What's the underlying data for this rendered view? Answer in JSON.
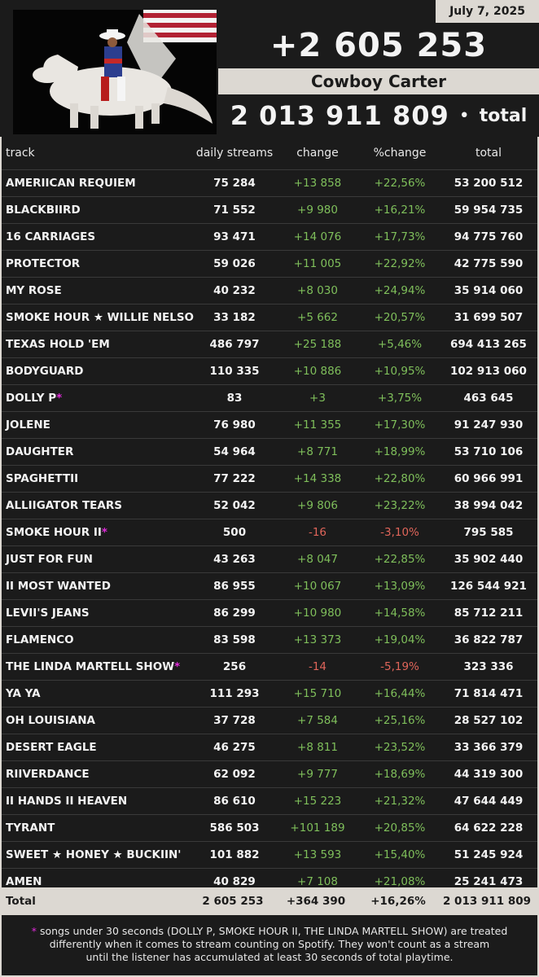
{
  "header": {
    "date": "July 7, 2025",
    "daily_total": "+2 605 253",
    "album": "Cowboy Carter",
    "total_value": "2 013 911 809",
    "total_dot": "•",
    "total_label": "total"
  },
  "columns": {
    "track": "track",
    "daily": "daily streams",
    "change": "change",
    "pct": "%change",
    "total": "total"
  },
  "rows": [
    {
      "track": "AMERIICAN REQUIEM",
      "daily": "75 284",
      "change": "+13 858",
      "pct": "+22,56%",
      "total": "53 200 512",
      "dir": "pos",
      "star": ""
    },
    {
      "track": "BLACKBIIRD",
      "daily": "71 552",
      "change": "+9 980",
      "pct": "+16,21%",
      "total": "59 954 735",
      "dir": "pos",
      "star": ""
    },
    {
      "track": "16 CARRIAGES",
      "daily": "93 471",
      "change": "+14 076",
      "pct": "+17,73%",
      "total": "94 775 760",
      "dir": "pos",
      "star": ""
    },
    {
      "track": "PROTECTOR",
      "daily": "59 026",
      "change": "+11 005",
      "pct": "+22,92%",
      "total": "42 775 590",
      "dir": "pos",
      "star": ""
    },
    {
      "track": "MY ROSE",
      "daily": "40 232",
      "change": "+8 030",
      "pct": "+24,94%",
      "total": "35 914 060",
      "dir": "pos",
      "star": ""
    },
    {
      "track": "SMOKE HOUR ★ WILLIE NELSON",
      "daily": "33 182",
      "change": "+5 662",
      "pct": "+20,57%",
      "total": "31 699 507",
      "dir": "pos",
      "star": ""
    },
    {
      "track": "TEXAS HOLD 'EM",
      "daily": "486 797",
      "change": "+25 188",
      "pct": "+5,46%",
      "total": "694 413 265",
      "dir": "pos",
      "star": ""
    },
    {
      "track": "BODYGUARD",
      "daily": "110 335",
      "change": "+10 886",
      "pct": "+10,95%",
      "total": "102 913 060",
      "dir": "pos",
      "star": ""
    },
    {
      "track": "DOLLY P",
      "daily": "83",
      "change": "+3",
      "pct": "+3,75%",
      "total": "463 645",
      "dir": "pos",
      "star": "*"
    },
    {
      "track": "JOLENE",
      "daily": "76 980",
      "change": "+11 355",
      "pct": "+17,30%",
      "total": "91 247 930",
      "dir": "pos",
      "star": ""
    },
    {
      "track": "DAUGHTER",
      "daily": "54 964",
      "change": "+8 771",
      "pct": "+18,99%",
      "total": "53 710 106",
      "dir": "pos",
      "star": ""
    },
    {
      "track": "SPAGHETTII",
      "daily": "77 222",
      "change": "+14 338",
      "pct": "+22,80%",
      "total": "60 966 991",
      "dir": "pos",
      "star": ""
    },
    {
      "track": "ALLIIGATOR TEARS",
      "daily": "52 042",
      "change": "+9 806",
      "pct": "+23,22%",
      "total": "38 994 042",
      "dir": "pos",
      "star": ""
    },
    {
      "track": "SMOKE HOUR II",
      "daily": "500",
      "change": "-16",
      "pct": "-3,10%",
      "total": "795 585",
      "dir": "neg",
      "star": "*"
    },
    {
      "track": "JUST FOR FUN",
      "daily": "43 263",
      "change": "+8 047",
      "pct": "+22,85%",
      "total": "35 902 440",
      "dir": "pos",
      "star": ""
    },
    {
      "track": "II MOST WANTED",
      "daily": "86 955",
      "change": "+10 067",
      "pct": "+13,09%",
      "total": "126 544 921",
      "dir": "pos",
      "star": ""
    },
    {
      "track": "LEVII'S JEANS",
      "daily": "86 299",
      "change": "+10 980",
      "pct": "+14,58%",
      "total": "85 712 211",
      "dir": "pos",
      "star": ""
    },
    {
      "track": "FLAMENCO",
      "daily": "83 598",
      "change": "+13 373",
      "pct": "+19,04%",
      "total": "36 822 787",
      "dir": "pos",
      "star": ""
    },
    {
      "track": "THE LINDA MARTELL SHOW",
      "daily": "256",
      "change": "-14",
      "pct": "-5,19%",
      "total": "323 336",
      "dir": "neg",
      "star": "*"
    },
    {
      "track": "YA YA",
      "daily": "111 293",
      "change": "+15 710",
      "pct": "+16,44%",
      "total": "71 814 471",
      "dir": "pos",
      "star": ""
    },
    {
      "track": "OH LOUISIANA",
      "daily": "37 728",
      "change": "+7 584",
      "pct": "+25,16%",
      "total": "28 527 102",
      "dir": "pos",
      "star": ""
    },
    {
      "track": "DESERT EAGLE",
      "daily": "46 275",
      "change": "+8 811",
      "pct": "+23,52%",
      "total": "33 366 379",
      "dir": "pos",
      "star": ""
    },
    {
      "track": "RIIVERDANCE",
      "daily": "62 092",
      "change": "+9 777",
      "pct": "+18,69%",
      "total": "44 319 300",
      "dir": "pos",
      "star": ""
    },
    {
      "track": "II HANDS II HEAVEN",
      "daily": "86 610",
      "change": "+15 223",
      "pct": "+21,32%",
      "total": "47 644 449",
      "dir": "pos",
      "star": ""
    },
    {
      "track": "TYRANT",
      "daily": "586 503",
      "change": "+101 189",
      "pct": "+20,85%",
      "total": "64 622 228",
      "dir": "pos",
      "star": ""
    },
    {
      "track": "SWEET ★ HONEY ★ BUCKIIN'",
      "daily": "101 882",
      "change": "+13 593",
      "pct": "+15,40%",
      "total": "51 245 924",
      "dir": "pos",
      "star": ""
    },
    {
      "track": "AMEN",
      "daily": "40 829",
      "change": "+7 108",
      "pct": "+21,08%",
      "total": "25 241 473",
      "dir": "pos",
      "star": ""
    }
  ],
  "totals": {
    "label": "Total",
    "daily": "2 605 253",
    "change": "+364 390",
    "pct": "+16,26%",
    "total": "2 013 911 809"
  },
  "footnote": {
    "star": "*",
    "line1": " songs under 30 seconds (DOLLY P, SMOKE HOUR II, THE LINDA MARTELL SHOW) are treated",
    "line2": "differently when it comes to stream counting on Spotify. They won't count as a stream",
    "line3": "until the listener has accumulated at least 30 seconds of total playtime."
  },
  "colors": {
    "positive": "#7fbf5b",
    "negative": "#e0655a",
    "star": "#e02ad9",
    "background": "#1b1b1b",
    "frame": "#dcd8d2"
  }
}
